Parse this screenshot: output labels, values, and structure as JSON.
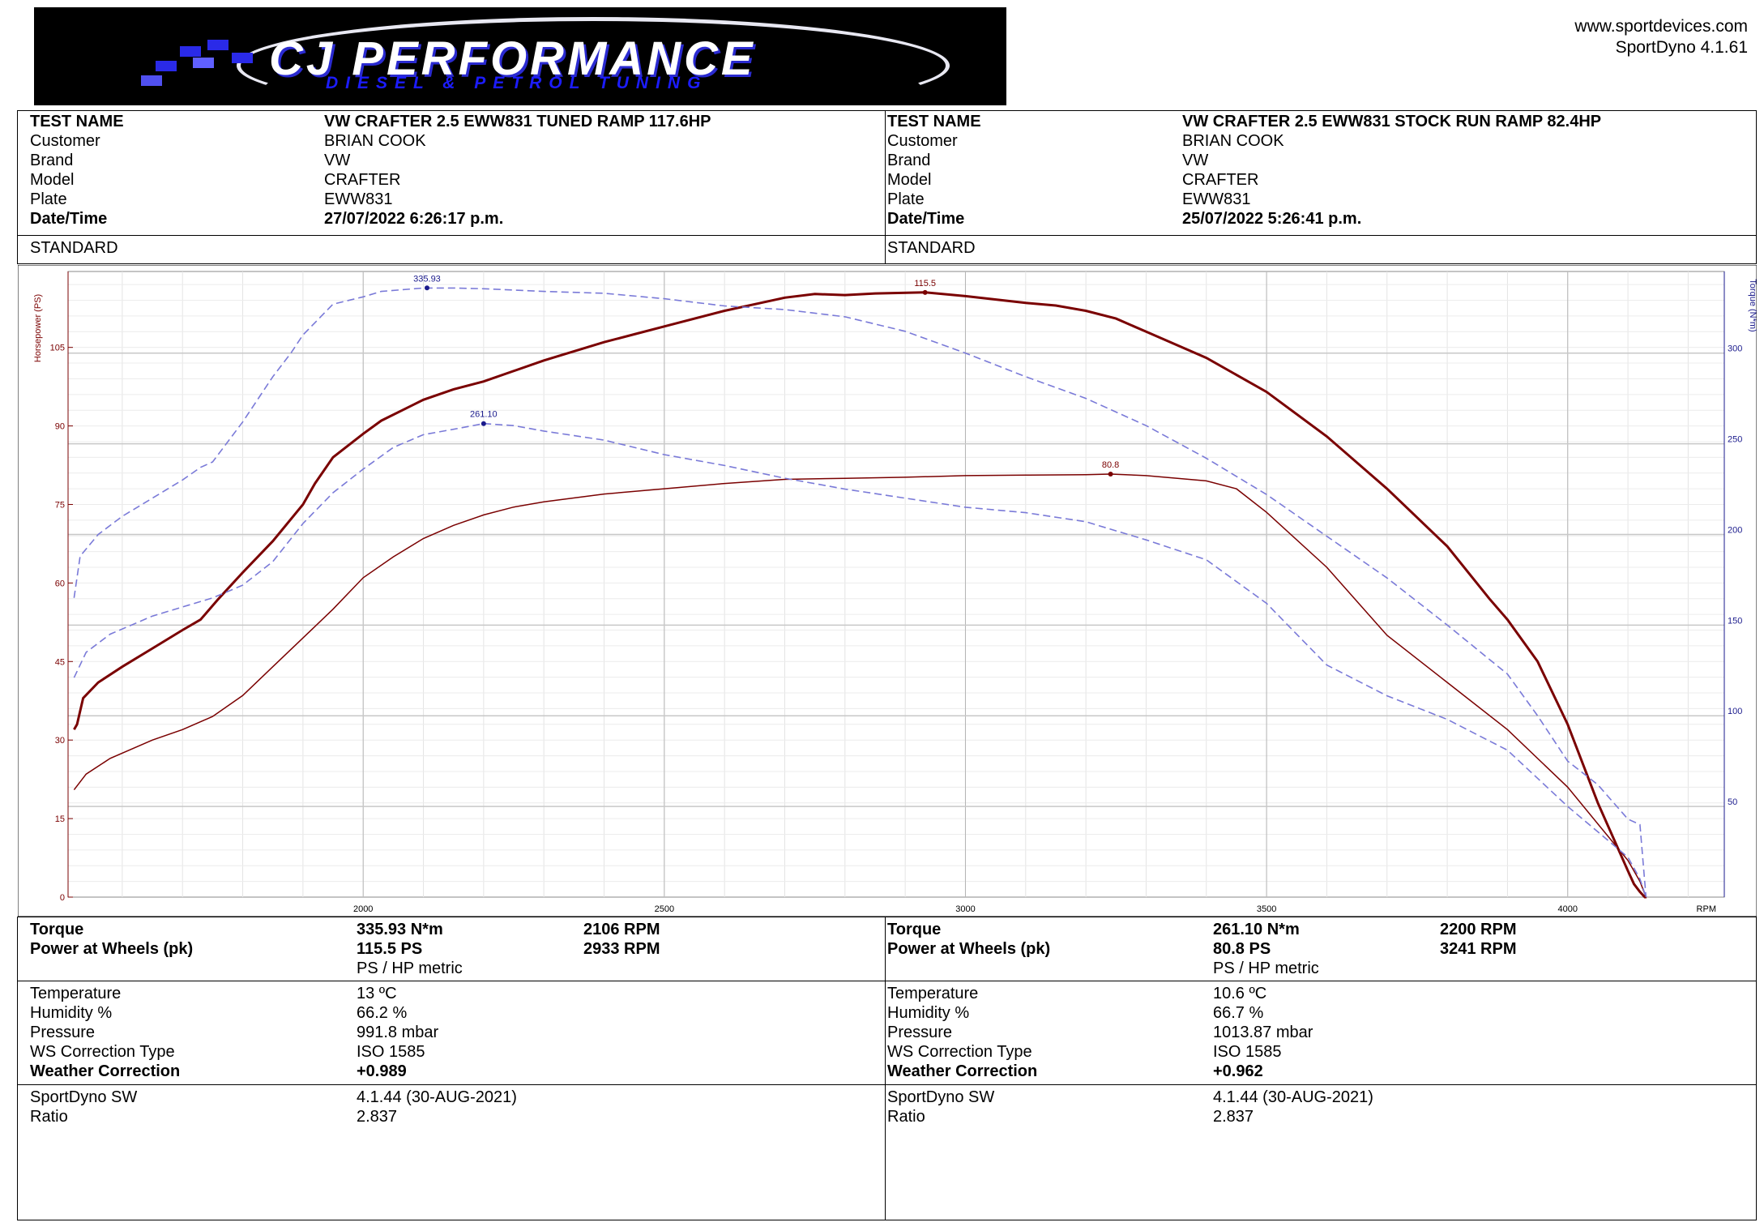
{
  "header": {
    "logo_brand": "CJ PERFORMANCE",
    "logo_tagline": "DIESEL & PETROL TUNING",
    "website": "www.sportdevices.com",
    "software": "SportDyno 4.1.61"
  },
  "runs": [
    {
      "info": [
        {
          "label": "TEST NAME",
          "value": "VW CRAFTER 2.5 EWW831 TUNED RAMP 117.6HP",
          "bold": true
        },
        {
          "label": "Customer",
          "value": "BRIAN COOK",
          "bold": false
        },
        {
          "label": "Brand",
          "value": "VW",
          "bold": false
        },
        {
          "label": "Model",
          "value": "CRAFTER",
          "bold": false
        },
        {
          "label": "Plate",
          "value": "EWW831",
          "bold": false
        },
        {
          "label": "Date/Time",
          "value": "27/07/2022 6:26:17 p.m.",
          "bold": true
        }
      ],
      "standard": "STANDARD",
      "results": {
        "torque_label": "Torque",
        "torque": "335.93 N*m",
        "torque_rpm": "2106 RPM",
        "power_label": "Power at Wheels (pk)",
        "power": "115.5 PS",
        "power_rpm": "2933 RPM",
        "units": "PS / HP metric"
      },
      "weather": [
        {
          "label": "Temperature",
          "value": "13 ºC",
          "bold": false
        },
        {
          "label": "Humidity %",
          "value": "66.2 %",
          "bold": false
        },
        {
          "label": "Pressure",
          "value": "991.8 mbar",
          "bold": false
        },
        {
          "label": "WS Correction Type",
          "value": "ISO 1585",
          "bold": false
        },
        {
          "label": "Weather Correction",
          "value": "+0.989",
          "bold": true
        }
      ],
      "software": [
        {
          "label": "SportDyno SW",
          "value": "4.1.44 (30-AUG-2021)"
        },
        {
          "label": "Ratio",
          "value": "2.837"
        }
      ]
    },
    {
      "info": [
        {
          "label": "TEST NAME",
          "value": "VW CRAFTER 2.5 EWW831 STOCK RUN RAMP 82.4HP",
          "bold": true
        },
        {
          "label": "Customer",
          "value": "BRIAN COOK",
          "bold": false
        },
        {
          "label": "Brand",
          "value": "VW",
          "bold": false
        },
        {
          "label": "Model",
          "value": "CRAFTER",
          "bold": false
        },
        {
          "label": "Plate",
          "value": "EWW831",
          "bold": false
        },
        {
          "label": "Date/Time",
          "value": "25/07/2022 5:26:41 p.m.",
          "bold": true
        }
      ],
      "standard": "STANDARD",
      "results": {
        "torque_label": "Torque",
        "torque": "261.10 N*m",
        "torque_rpm": "2200 RPM",
        "power_label": "Power at Wheels (pk)",
        "power": "80.8 PS",
        "power_rpm": "3241 RPM",
        "units": "PS / HP metric"
      },
      "weather": [
        {
          "label": "Temperature",
          "value": "10.6 ºC",
          "bold": false
        },
        {
          "label": "Humidity %",
          "value": "66.7 %",
          "bold": false
        },
        {
          "label": "Pressure",
          "value": "1013.87 mbar",
          "bold": false
        },
        {
          "label": "WS Correction Type",
          "value": "ISO 1585",
          "bold": false
        },
        {
          "label": "Weather Correction",
          "value": "+0.962",
          "bold": true
        }
      ],
      "software": [
        {
          "label": "SportDyno SW",
          "value": "4.1.44 (30-AUG-2021)"
        },
        {
          "label": "Ratio",
          "value": "2.837"
        }
      ]
    }
  ],
  "chart_data": {
    "type": "line",
    "ylabel_left": "Horsepower (PS)",
    "ylabel_right": "Torque (N*m)",
    "xlabel": "RPM",
    "x_ticks": [
      2000,
      2500,
      3000,
      3500,
      4000
    ],
    "xlim": [
      1510,
      4260
    ],
    "y_left_ticks": [
      0,
      15,
      30,
      45,
      60,
      75,
      90,
      105
    ],
    "y_left_lim": [
      0,
      119.5
    ],
    "y_right_ticks": [
      50,
      100,
      150,
      200,
      250,
      300
    ],
    "y_right_lim": [
      0,
      345
    ],
    "grid": true,
    "colors": {
      "power": "#7a0000",
      "torque": "#7a7ad8"
    },
    "series": [
      {
        "axis": "left",
        "style": "power-bold",
        "peak_label": "115.5",
        "peak_x": 2933,
        "peak_y": 115.5,
        "x": [
          1520,
          1525,
          1535,
          1560,
          1600,
          1650,
          1700,
          1730,
          1760,
          1800,
          1850,
          1900,
          1920,
          1950,
          2000,
          2030,
          2100,
          2150,
          2200,
          2300,
          2400,
          2450,
          2500,
          2600,
          2700,
          2750,
          2800,
          2850,
          2933,
          3000,
          3100,
          3150,
          3200,
          3250,
          3300,
          3400,
          3500,
          3600,
          3700,
          3800,
          3870,
          3900,
          3950,
          4000,
          4050,
          4100,
          4110,
          4120,
          4128,
          4131
        ],
        "y": [
          32,
          33,
          38,
          41,
          44,
          47.5,
          51,
          53,
          57,
          62,
          68,
          75,
          79,
          84,
          88.5,
          91,
          95,
          97,
          98.5,
          102.5,
          106,
          107.5,
          109,
          112,
          114.5,
          115.2,
          115,
          115.3,
          115.5,
          114.8,
          113.5,
          113,
          112,
          110.5,
          108,
          103,
          96.5,
          88,
          78,
          67,
          57,
          53,
          45,
          33,
          18,
          5,
          2.5,
          1,
          0,
          0
        ]
      },
      {
        "axis": "left",
        "style": "power-thin",
        "peak_label": "80.8",
        "peak_x": 3241,
        "peak_y": 80.8,
        "x": [
          1520,
          1540,
          1580,
          1650,
          1700,
          1750,
          1800,
          1850,
          1900,
          1950,
          2000,
          2050,
          2100,
          2150,
          2200,
          2250,
          2300,
          2400,
          2500,
          2600,
          2700,
          2800,
          2900,
          3000,
          3100,
          3200,
          3241,
          3300,
          3400,
          3450,
          3500,
          3600,
          3700,
          3800,
          3900,
          4000,
          4050,
          4100,
          4120,
          4130
        ],
        "y": [
          20.5,
          23.5,
          26.5,
          30,
          32,
          34.5,
          38.5,
          44,
          49.5,
          55,
          61,
          65,
          68.5,
          71,
          73,
          74.5,
          75.5,
          77,
          78,
          79,
          79.8,
          80,
          80.2,
          80.5,
          80.6,
          80.7,
          80.8,
          80.5,
          79.5,
          78,
          73.5,
          63,
          50,
          41,
          32,
          21,
          14,
          7,
          3,
          0
        ]
      },
      {
        "axis": "right",
        "style": "torque-dash",
        "peak_label": "335.93",
        "peak_x": 2106,
        "peak_y": 335.93,
        "x": [
          1520,
          1530,
          1560,
          1600,
          1650,
          1700,
          1730,
          1750,
          1800,
          1850,
          1880,
          1900,
          1950,
          2000,
          2030,
          2100,
          2150,
          2200,
          2300,
          2400,
          2500,
          2600,
          2700,
          2800,
          2900,
          3000,
          3100,
          3200,
          3300,
          3400,
          3500,
          3600,
          3700,
          3800,
          3900,
          3950,
          4000,
          4050,
          4100,
          4120,
          4130
        ],
        "y": [
          165,
          188,
          200,
          210,
          220,
          230,
          237,
          240,
          262,
          287,
          300,
          310,
          327,
          331,
          334,
          335.9,
          335.9,
          335.5,
          334,
          333,
          330,
          326,
          324,
          320,
          312,
          300,
          287,
          275,
          260,
          242,
          222,
          199,
          176,
          150,
          123,
          100,
          75,
          62,
          43,
          40,
          0
        ]
      },
      {
        "axis": "right",
        "style": "torque-dash",
        "peak_label": "261.10",
        "peak_x": 2200,
        "peak_y": 261.1,
        "x": [
          1520,
          1540,
          1580,
          1650,
          1700,
          1750,
          1800,
          1850,
          1900,
          1950,
          2000,
          2050,
          2100,
          2150,
          2200,
          2250,
          2300,
          2400,
          2500,
          2600,
          2700,
          2800,
          2900,
          3000,
          3100,
          3200,
          3300,
          3400,
          3500,
          3600,
          3700,
          3800,
          3900,
          4000,
          4050,
          4100,
          4120,
          4130
        ],
        "y": [
          121,
          135,
          145,
          155,
          160,
          165,
          172,
          185,
          206,
          223,
          236,
          248,
          255,
          258,
          261.1,
          260,
          257,
          252,
          244,
          238,
          231,
          225,
          220,
          215,
          212,
          207,
          197,
          186,
          162,
          128,
          111,
          98,
          81,
          50,
          36,
          22,
          10,
          0
        ]
      }
    ]
  }
}
